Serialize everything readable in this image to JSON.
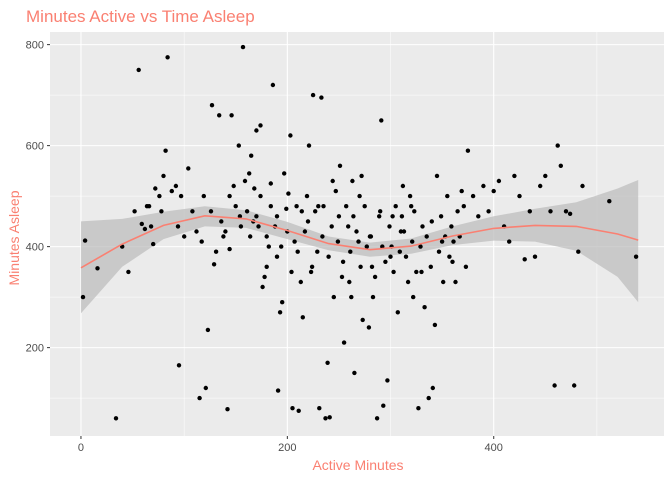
{
  "chart_data": {
    "type": "scatter",
    "title": "Minutes Active vs Time Asleep",
    "xlabel": "Active Minutes",
    "ylabel": "Minutes Asleep",
    "xlim": [
      -30,
      565
    ],
    "ylim": [
      25,
      825
    ],
    "x_ticks": [
      0,
      200,
      400
    ],
    "y_ticks": [
      200,
      400,
      600,
      800
    ],
    "grid": true,
    "colors": {
      "title": "#fa8072",
      "panel": "#ebebeb",
      "grid": "#ffffff",
      "points": "#000000",
      "smooth": "#fa8072",
      "band": "#bdbdbd"
    },
    "points": [
      [
        2,
        300
      ],
      [
        4,
        412
      ],
      [
        16,
        357
      ],
      [
        34,
        60
      ],
      [
        40,
        400
      ],
      [
        46,
        350
      ],
      [
        52,
        470
      ],
      [
        56,
        750
      ],
      [
        59,
        445
      ],
      [
        62,
        435
      ],
      [
        64,
        480
      ],
      [
        66,
        480
      ],
      [
        68,
        440
      ],
      [
        70,
        405
      ],
      [
        72,
        515
      ],
      [
        76,
        500
      ],
      [
        78,
        470
      ],
      [
        80,
        540
      ],
      [
        82,
        590
      ],
      [
        84,
        775
      ],
      [
        88,
        510
      ],
      [
        92,
        520
      ],
      [
        94,
        440
      ],
      [
        95,
        165
      ],
      [
        97,
        500
      ],
      [
        100,
        420
      ],
      [
        104,
        555
      ],
      [
        108,
        470
      ],
      [
        112,
        430
      ],
      [
        115,
        100
      ],
      [
        117,
        410
      ],
      [
        119,
        500
      ],
      [
        121,
        120
      ],
      [
        123,
        235
      ],
      [
        126,
        470
      ],
      [
        127,
        680
      ],
      [
        129,
        365
      ],
      [
        131,
        390
      ],
      [
        134,
        660
      ],
      [
        136,
        450
      ],
      [
        138,
        420
      ],
      [
        140,
        430
      ],
      [
        142,
        78
      ],
      [
        144,
        395
      ],
      [
        146,
        660
      ],
      [
        148,
        520
      ],
      [
        150,
        480
      ],
      [
        153,
        600
      ],
      [
        155,
        440
      ],
      [
        157,
        795
      ],
      [
        159,
        530
      ],
      [
        161,
        470
      ],
      [
        163,
        545
      ],
      [
        165,
        580
      ],
      [
        167,
        450
      ],
      [
        168,
        515
      ],
      [
        170,
        630
      ],
      [
        172,
        440
      ],
      [
        174,
        640
      ],
      [
        176,
        320
      ],
      [
        178,
        340
      ],
      [
        180,
        360
      ],
      [
        182,
        400
      ],
      [
        184,
        525
      ],
      [
        186,
        720
      ],
      [
        188,
        440
      ],
      [
        190,
        380
      ],
      [
        191,
        115
      ],
      [
        193,
        270
      ],
      [
        195,
        290
      ],
      [
        197,
        545
      ],
      [
        199,
        475
      ],
      [
        201,
        505
      ],
      [
        203,
        620
      ],
      [
        205,
        80
      ],
      [
        207,
        410
      ],
      [
        209,
        480
      ],
      [
        211,
        75
      ],
      [
        213,
        330
      ],
      [
        215,
        260
      ],
      [
        217,
        430
      ],
      [
        219,
        500
      ],
      [
        221,
        600
      ],
      [
        223,
        350
      ],
      [
        225,
        700
      ],
      [
        227,
        470
      ],
      [
        229,
        390
      ],
      [
        231,
        80
      ],
      [
        233,
        695
      ],
      [
        235,
        480
      ],
      [
        237,
        60
      ],
      [
        239,
        170
      ],
      [
        241,
        62
      ],
      [
        243,
        440
      ],
      [
        245,
        300
      ],
      [
        247,
        510
      ],
      [
        249,
        410
      ],
      [
        251,
        560
      ],
      [
        253,
        340
      ],
      [
        255,
        210
      ],
      [
        257,
        480
      ],
      [
        259,
        440
      ],
      [
        261,
        390
      ],
      [
        263,
        530
      ],
      [
        265,
        150
      ],
      [
        267,
        430
      ],
      [
        269,
        410
      ],
      [
        271,
        360
      ],
      [
        273,
        255
      ],
      [
        275,
        480
      ],
      [
        277,
        400
      ],
      [
        279,
        240
      ],
      [
        281,
        420
      ],
      [
        283,
        300
      ],
      [
        285,
        340
      ],
      [
        287,
        60
      ],
      [
        289,
        460
      ],
      [
        291,
        650
      ],
      [
        293,
        85
      ],
      [
        295,
        370
      ],
      [
        297,
        135
      ],
      [
        299,
        440
      ],
      [
        301,
        400
      ],
      [
        303,
        350
      ],
      [
        305,
        480
      ],
      [
        307,
        270
      ],
      [
        309,
        390
      ],
      [
        311,
        460
      ],
      [
        313,
        430
      ],
      [
        315,
        380
      ],
      [
        317,
        330
      ],
      [
        319,
        500
      ],
      [
        321,
        410
      ],
      [
        323,
        470
      ],
      [
        325,
        350
      ],
      [
        327,
        80
      ],
      [
        329,
        400
      ],
      [
        331,
        440
      ],
      [
        333,
        280
      ],
      [
        335,
        420
      ],
      [
        337,
        100
      ],
      [
        339,
        360
      ],
      [
        341,
        120
      ],
      [
        343,
        245
      ],
      [
        345,
        540
      ],
      [
        347,
        390
      ],
      [
        349,
        460
      ],
      [
        351,
        330
      ],
      [
        353,
        420
      ],
      [
        355,
        500
      ],
      [
        357,
        380
      ],
      [
        359,
        440
      ],
      [
        361,
        410
      ],
      [
        363,
        330
      ],
      [
        365,
        470
      ],
      [
        367,
        420
      ],
      [
        369,
        510
      ],
      [
        371,
        480
      ],
      [
        373,
        360
      ],
      [
        375,
        590
      ],
      [
        380,
        500
      ],
      [
        385,
        460
      ],
      [
        390,
        520
      ],
      [
        395,
        470
      ],
      [
        400,
        510
      ],
      [
        405,
        530
      ],
      [
        410,
        440
      ],
      [
        415,
        410
      ],
      [
        420,
        540
      ],
      [
        425,
        500
      ],
      [
        430,
        375
      ],
      [
        435,
        470
      ],
      [
        440,
        380
      ],
      [
        445,
        520
      ],
      [
        450,
        540
      ],
      [
        455,
        470
      ],
      [
        459,
        125
      ],
      [
        462,
        600
      ],
      [
        465,
        560
      ],
      [
        470,
        470
      ],
      [
        474,
        465
      ],
      [
        478,
        125
      ],
      [
        482,
        390
      ],
      [
        486,
        520
      ],
      [
        512,
        490
      ],
      [
        538,
        380
      ],
      [
        230,
        480
      ],
      [
        240,
        380
      ],
      [
        250,
        460
      ],
      [
        260,
        330
      ],
      [
        270,
        500
      ],
      [
        280,
        420
      ],
      [
        290,
        470
      ],
      [
        300,
        380
      ],
      [
        310,
        430
      ],
      [
        320,
        480
      ],
      [
        330,
        350
      ],
      [
        340,
        450
      ],
      [
        350,
        410
      ],
      [
        360,
        370
      ],
      [
        220,
        450
      ],
      [
        210,
        390
      ],
      [
        200,
        430
      ],
      [
        190,
        460
      ],
      [
        180,
        420
      ],
      [
        170,
        460
      ],
      [
        262,
        300
      ],
      [
        272,
        540
      ],
      [
        282,
        360
      ],
      [
        292,
        400
      ],
      [
        302,
        460
      ],
      [
        312,
        520
      ],
      [
        322,
        300
      ],
      [
        244,
        530
      ],
      [
        254,
        370
      ],
      [
        264,
        460
      ],
      [
        234,
        420
      ],
      [
        224,
        360
      ],
      [
        214,
        470
      ],
      [
        204,
        350
      ],
      [
        194,
        400
      ],
      [
        184,
        480
      ],
      [
        174,
        500
      ],
      [
        164,
        420
      ],
      [
        154,
        460
      ],
      [
        144,
        500
      ]
    ],
    "smooth": {
      "x": [
        0,
        40,
        80,
        120,
        160,
        200,
        240,
        280,
        320,
        360,
        400,
        440,
        480,
        520,
        540
      ],
      "y": [
        358,
        405,
        442,
        461,
        455,
        432,
        406,
        394,
        401,
        421,
        436,
        442,
        440,
        425,
        413
      ],
      "lower": [
        268,
        360,
        415,
        440,
        437,
        415,
        393,
        380,
        386,
        403,
        412,
        410,
        392,
        340,
        290
      ],
      "upper": [
        450,
        455,
        469,
        480,
        472,
        449,
        420,
        408,
        416,
        440,
        460,
        475,
        488,
        515,
        532
      ]
    }
  }
}
